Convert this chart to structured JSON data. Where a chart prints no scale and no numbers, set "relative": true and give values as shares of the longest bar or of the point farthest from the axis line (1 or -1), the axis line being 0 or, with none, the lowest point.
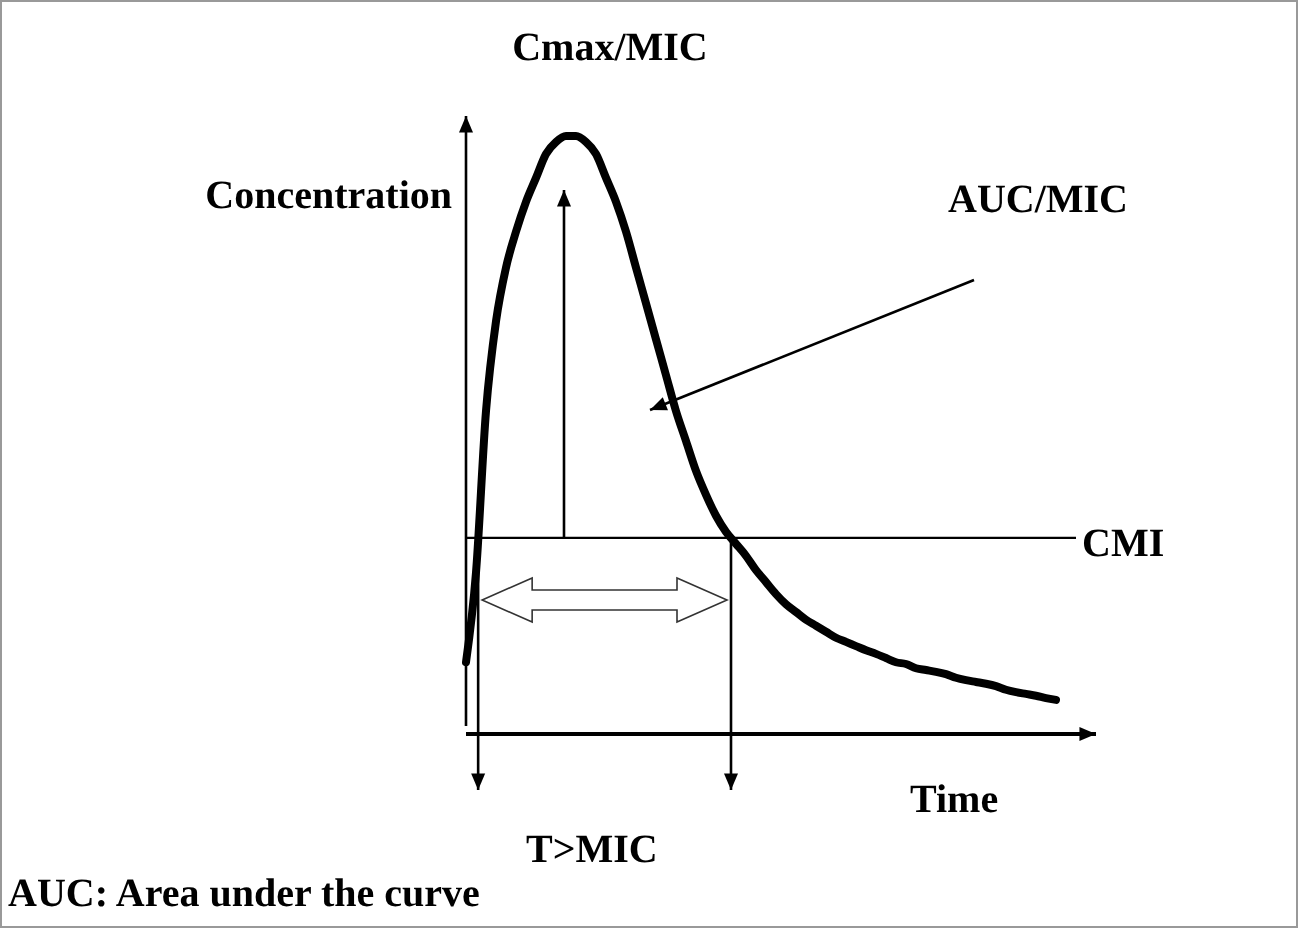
{
  "chart_data": {
    "type": "line",
    "relative": true,
    "xlabel": "Time",
    "ylabel": "Concentration",
    "categories": [
      null,
      null,
      null,
      null,
      null,
      null,
      null,
      null,
      null,
      null,
      null,
      null,
      null,
      null,
      null,
      null,
      null,
      null,
      null,
      null,
      null,
      null,
      null,
      null,
      null,
      null,
      null,
      null,
      null,
      null,
      null,
      null,
      null,
      null,
      null,
      null,
      null,
      null,
      null,
      null,
      null,
      null,
      null,
      null,
      null,
      null,
      null,
      null,
      null,
      null,
      null,
      null,
      null,
      null,
      null,
      null,
      null,
      null,
      null,
      null,
      null,
      null,
      null,
      null
    ],
    "series": [
      {
        "color": "#000000",
        "values": [
          0.12,
          0.27,
          0.54,
          0.69,
          0.78,
          0.84,
          0.89,
          0.93,
          0.97,
          0.99,
          1,
          1,
          0.99,
          0.97,
          0.93,
          0.89,
          0.84,
          0.78,
          0.72,
          0.66,
          0.6,
          0.54,
          0.49,
          0.44,
          0.4,
          0.365,
          0.338,
          0.318,
          0.298,
          0.274,
          0.254,
          0.234,
          0.217,
          0.204,
          0.191,
          0.181,
          0.171,
          0.161,
          0.154,
          0.147,
          0.14,
          0.134,
          0.127,
          0.12,
          0.117,
          0.11,
          0.107,
          0.104,
          0.1,
          0.094,
          0.09,
          0.087,
          0.084,
          0.08,
          0.074,
          0.07,
          0.067,
          0.064,
          0.06,
          0.057,
          null,
          null,
          null,
          null
        ]
      }
    ],
    "ref_lines": [
      {
        "axis": "y",
        "value": 0.328,
        "label": "CMI",
        "color": "#000000"
      }
    ],
    "annotations": [
      "Cmax/MIC",
      "AUC/MIC",
      "T>MIC",
      "AUC: Area under the curve"
    ],
    "marker": "none",
    "line_style": "solid",
    "grid": false
  }
}
